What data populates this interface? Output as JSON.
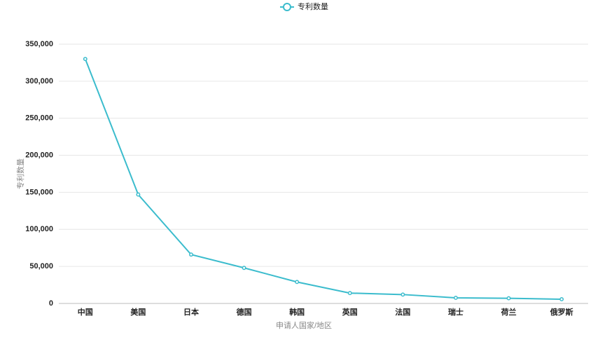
{
  "chart_data": {
    "type": "line",
    "legend": "top",
    "x_label": "申请人国家/地区",
    "y_label": "专利数量",
    "categories": [
      "中国",
      "美国",
      "日本",
      "德国",
      "韩国",
      "英国",
      "法国",
      "瑞士",
      "荷兰",
      "俄罗斯"
    ],
    "series": [
      {
        "name": "专利数量",
        "color": "#3bbccd",
        "values": [
          330000,
          147000,
          66000,
          48000,
          29000,
          14000,
          12000,
          7600,
          7000,
          5700
        ]
      }
    ],
    "ylim": [
      0,
      350000
    ],
    "yticks": [
      0,
      {
        "value": 50000,
        "label": "50,000"
      },
      {
        "value": 100000,
        "label": "100,000"
      },
      {
        "value": 150000,
        "label": "150,000"
      },
      {
        "value": 200000,
        "label": "200,000"
      },
      {
        "value": 250000,
        "label": "250,000"
      },
      {
        "value": 300000,
        "label": "300,000"
      },
      {
        "value": 350000,
        "label": "350,000"
      }
    ],
    "grid": true
  }
}
